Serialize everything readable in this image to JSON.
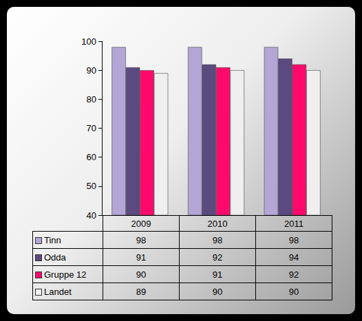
{
  "chart_data": {
    "type": "bar",
    "categories": [
      "2009",
      "2010",
      "2011"
    ],
    "series": [
      {
        "name": "Tinn",
        "color": "#b3a6d6",
        "values": [
          98,
          98,
          98
        ]
      },
      {
        "name": "Odda",
        "color": "#5b4a80",
        "values": [
          91,
          92,
          94
        ]
      },
      {
        "name": "Gruppe 12",
        "color": "#ff0a6c",
        "values": [
          90,
          91,
          92
        ]
      },
      {
        "name": "Landet",
        "color": "#efefef",
        "values": [
          89,
          90,
          90
        ]
      }
    ],
    "ylim": [
      40,
      100
    ],
    "yticks": [
      40,
      50,
      60,
      70,
      80,
      90,
      100
    ],
    "grid": false
  }
}
